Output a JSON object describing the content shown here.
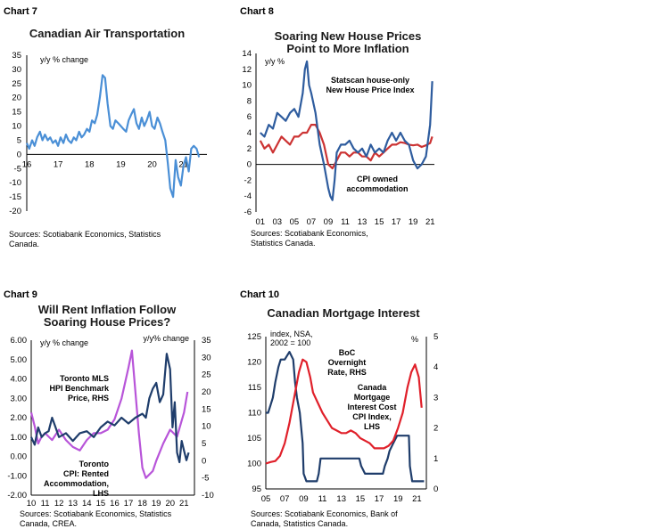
{
  "chart_data": [
    {
      "id": "chart7",
      "type": "line",
      "label": "Chart 7",
      "title": "Canadian Air Transportation",
      "ylabel": "y/y % change",
      "ylim": [
        -20,
        35
      ],
      "yticks": [
        "35",
        "30",
        "25",
        "20",
        "15",
        "10",
        "5",
        "0",
        "-5",
        "-10",
        "-15",
        "-20"
      ],
      "xlim": [
        2016,
        2021.75
      ],
      "xticks": [
        "16",
        "17",
        "18",
        "19",
        "20",
        "21"
      ],
      "source": "Sources: Scotiabank Economics, Statistics Canada.",
      "series": [
        {
          "color": "#4a8fd6",
          "x": [
            2016.0,
            2016.08,
            2016.17,
            2016.25,
            2016.33,
            2016.42,
            2016.5,
            2016.58,
            2016.67,
            2016.75,
            2016.83,
            2016.92,
            2017.0,
            2017.08,
            2017.17,
            2017.25,
            2017.33,
            2017.42,
            2017.5,
            2017.58,
            2017.67,
            2017.75,
            2017.83,
            2017.92,
            2018.0,
            2018.08,
            2018.17,
            2018.25,
            2018.33,
            2018.42,
            2018.5,
            2018.58,
            2018.67,
            2018.75,
            2018.83,
            2018.92,
            2019.0,
            2019.08,
            2019.17,
            2019.25,
            2019.33,
            2019.42,
            2019.5,
            2019.58,
            2019.67,
            2019.75,
            2019.83,
            2019.92,
            2020.0,
            2020.08,
            2020.17,
            2020.25,
            2020.33,
            2020.42,
            2020.5,
            2020.58,
            2020.67,
            2020.75,
            2020.83,
            2020.92,
            2021.0,
            2021.08,
            2021.17,
            2021.25,
            2021.33,
            2021.42,
            2021.5
          ],
          "y": [
            4,
            2,
            5,
            3,
            6,
            8,
            5,
            7,
            5,
            6,
            4,
            5,
            3,
            6,
            4,
            7,
            5,
            4,
            6,
            5,
            8,
            6,
            7,
            9,
            8,
            12,
            11,
            14,
            20,
            28,
            27,
            18,
            10,
            9,
            12,
            11,
            10,
            9,
            8,
            12,
            14,
            16,
            11,
            9,
            13,
            10,
            12,
            15,
            10,
            9,
            13,
            11,
            8,
            5,
            -3,
            -12,
            -15,
            -2,
            -8,
            -11,
            -4,
            -1,
            -6,
            2,
            3,
            2,
            -1
          ]
        }
      ]
    },
    {
      "id": "chart8",
      "type": "line",
      "label": "Chart 8",
      "title": [
        "Soaring New House Prices",
        "Point to More Inflation"
      ],
      "ylabel": "y/y %",
      "ylim": [
        -6,
        14
      ],
      "yticks": [
        "14",
        "12",
        "10",
        "8",
        "6",
        "4",
        "2",
        "0",
        "-2",
        "-4",
        "-6"
      ],
      "xlim": [
        2000.5,
        2021.5
      ],
      "xticks": [
        "01",
        "03",
        "05",
        "07",
        "09",
        "11",
        "13",
        "15",
        "17",
        "19",
        "21"
      ],
      "source": [
        "Sources: Scotiabank Economics,",
        "Statistics Canada."
      ],
      "annotations": [
        {
          "lines": [
            "Statscan house-only",
            "New House Price Index"
          ],
          "color": "#1f4e8c"
        },
        {
          "lines": [
            "CPI owned",
            "accommodation"
          ],
          "color": "#3c9b5c"
        }
      ],
      "series": [
        {
          "name": "Statscan house-only New House Price Index",
          "color": "#2e5c9e",
          "x": [
            2001,
            2001.5,
            2002,
            2002.5,
            2003,
            2003.5,
            2004,
            2004.5,
            2005,
            2005.5,
            2006,
            2006.25,
            2006.5,
            2006.75,
            2007,
            2007.5,
            2008,
            2008.5,
            2009,
            2009.25,
            2009.5,
            2009.75,
            2010,
            2010.5,
            2011,
            2011.5,
            2012,
            2012.5,
            2013,
            2013.5,
            2014,
            2014.5,
            2015,
            2015.5,
            2016,
            2016.5,
            2017,
            2017.5,
            2018,
            2018.5,
            2019,
            2019.5,
            2020,
            2020.5,
            2021,
            2021.25
          ],
          "y": [
            4,
            3.5,
            5,
            4.5,
            6.5,
            6,
            5.5,
            6.5,
            7,
            6,
            9,
            12,
            13,
            10,
            9,
            6.5,
            2.5,
            0,
            -3,
            -4,
            -4.5,
            -2,
            1.5,
            2.5,
            2.5,
            3,
            2,
            1.5,
            2,
            1,
            2.5,
            1.5,
            2,
            1.5,
            3,
            4,
            3,
            4,
            3,
            2.5,
            0.5,
            -0.5,
            0,
            1,
            5,
            10.5
          ]
        },
        {
          "name": "CPI owned accommodation",
          "color": "#cc3333",
          "x": [
            2001,
            2001.5,
            2002,
            2002.5,
            2003,
            2003.5,
            2004,
            2004.5,
            2005,
            2005.5,
            2006,
            2006.5,
            2007,
            2007.5,
            2008,
            2008.5,
            2009,
            2009.5,
            2010,
            2010.5,
            2011,
            2011.5,
            2012,
            2012.5,
            2013,
            2013.5,
            2014,
            2014.5,
            2015,
            2015.5,
            2016,
            2016.5,
            2017,
            2017.5,
            2018,
            2018.5,
            2019,
            2019.5,
            2020,
            2020.5,
            2021,
            2021.25
          ],
          "y": [
            3,
            2,
            2.5,
            1.5,
            2.5,
            3.5,
            3,
            2.5,
            3.5,
            3.5,
            4,
            4,
            5,
            5,
            4,
            2.5,
            0,
            -0.5,
            0.5,
            1.5,
            1.5,
            1,
            1.5,
            1.5,
            1,
            1,
            0.5,
            1.5,
            1,
            1.5,
            2,
            2.5,
            2.5,
            2.8,
            2.7,
            2.5,
            2.4,
            2.5,
            2.2,
            2.4,
            2.7,
            3.5
          ]
        }
      ]
    },
    {
      "id": "chart9",
      "type": "line",
      "label": "Chart 9",
      "title": [
        "Will Rent Inflation Follow",
        "Soaring House Prices?"
      ],
      "ylabel_left": "y/y % change",
      "ylabel_right": "y/y% change",
      "ylim_left": [
        -2,
        6
      ],
      "ylim_right": [
        -10,
        35
      ],
      "yticks_left": [
        "6.00",
        "5.00",
        "4.00",
        "3.00",
        "2.00",
        "1.00",
        "0.00",
        "-1.00",
        "-2.00"
      ],
      "yticks_right": [
        "35",
        "30",
        "25",
        "20",
        "15",
        "10",
        "5",
        "0",
        "-5",
        "-10"
      ],
      "xlim": [
        2010,
        2021.75
      ],
      "xticks": [
        "10",
        "11",
        "12",
        "13",
        "14",
        "15",
        "16",
        "17",
        "18",
        "19",
        "20",
        "21"
      ],
      "source": [
        "Sources: Scotiabank Economics, Statistics",
        "Canada, CREA."
      ],
      "annotations": [
        {
          "lines": [
            "Toronto MLS",
            "HPI Benchmark",
            "Price, RHS"
          ],
          "color": "#b855d9"
        },
        {
          "lines": [
            "Toronto",
            "CPI: Rented",
            "Accommodation,",
            "LHS"
          ],
          "color": "#1f3d6b"
        }
      ],
      "series": [
        {
          "name": "Toronto CPI: Rented Accommodation, LHS",
          "color": "#1f3d6b",
          "axis": "left",
          "x": [
            2010,
            2010.25,
            2010.5,
            2010.75,
            2011,
            2011.25,
            2011.5,
            2011.75,
            2012,
            2012.5,
            2013,
            2013.5,
            2014,
            2014.5,
            2015,
            2015.5,
            2016,
            2016.5,
            2017,
            2017.5,
            2018,
            2018.25,
            2018.5,
            2018.75,
            2019,
            2019.25,
            2019.5,
            2019.75,
            2020,
            2020.17,
            2020.33,
            2020.5,
            2020.67,
            2020.83,
            2021,
            2021.17,
            2021.33
          ],
          "y": [
            1.0,
            0.6,
            1.5,
            1.0,
            1.2,
            1.3,
            2.0,
            1.5,
            1.0,
            1.2,
            0.8,
            1.2,
            1.3,
            1.0,
            1.5,
            1.8,
            1.6,
            2.0,
            1.7,
            2.0,
            2.2,
            2.0,
            3.0,
            3.5,
            3.8,
            2.8,
            3.2,
            5.3,
            4.5,
            1.5,
            2.8,
            0.2,
            -0.3,
            0.8,
            0.3,
            -0.2,
            0.2
          ]
        },
        {
          "name": "Toronto MLS HPI Benchmark Price, RHS",
          "color": "#b855d9",
          "axis": "right",
          "x": [
            2010,
            2010.25,
            2010.5,
            2010.75,
            2011,
            2011.5,
            2012,
            2012.5,
            2013,
            2013.5,
            2014,
            2014.5,
            2015,
            2015.5,
            2016,
            2016.5,
            2017,
            2017.25,
            2017.5,
            2017.75,
            2018,
            2018.25,
            2018.5,
            2018.75,
            2019,
            2019.5,
            2020,
            2020.5,
            2021,
            2021.25
          ],
          "y": [
            14,
            10,
            5,
            7,
            8,
            6,
            9,
            6,
            4,
            3,
            6,
            8,
            8,
            9,
            12,
            18,
            27,
            32,
            20,
            8,
            -2,
            -5,
            -4,
            -3,
            0,
            5,
            9,
            7,
            14,
            20
          ]
        }
      ]
    },
    {
      "id": "chart10",
      "type": "line",
      "label": "Chart 10",
      "title": "Canadian Mortgage Interest",
      "ylabel_left": [
        "index, NSA,",
        "2002 = 100"
      ],
      "ylabel_right": "%",
      "ylim_left": [
        95,
        125
      ],
      "ylim_right": [
        0,
        5
      ],
      "yticks_left": [
        "125",
        "120",
        "115",
        "110",
        "105",
        "100",
        "95"
      ],
      "yticks_right": [
        "5",
        "4",
        "3",
        "2",
        "1",
        "0"
      ],
      "xlim": [
        2005,
        2022
      ],
      "xticks": [
        "05",
        "07",
        "09",
        "11",
        "13",
        "15",
        "17",
        "19",
        "21"
      ],
      "source": [
        "Sources: Scotiabank Economics, Bank of",
        "Canada, Statistics Canada."
      ],
      "annotations": [
        {
          "lines": [
            "BoC",
            "Overnight",
            "Rate, RHS"
          ],
          "color": "#1f3d6b"
        },
        {
          "lines": [
            "Canada",
            "Mortgage",
            "Interest Cost",
            "CPI Index,",
            "LHS"
          ],
          "color": "#e0202a"
        }
      ],
      "series": [
        {
          "name": "BoC Overnight Rate, RHS",
          "color": "#1f3d6b",
          "axis": "right",
          "x": [
            2005,
            2005.25,
            2005.5,
            2005.75,
            2006,
            2006.33,
            2006.58,
            2007,
            2007.5,
            2007.9,
            2008.1,
            2008.3,
            2008.6,
            2008.9,
            2009.0,
            2009.3,
            2010.4,
            2010.6,
            2010.8,
            2014.9,
            2015.1,
            2015.5,
            2017.4,
            2017.6,
            2017.9,
            2018.1,
            2018.5,
            2018.9,
            2020.15,
            2020.25,
            2020.5,
            2021.75
          ],
          "y": [
            2.5,
            2.5,
            2.75,
            3.0,
            3.5,
            4.0,
            4.25,
            4.25,
            4.5,
            4.25,
            3.5,
            3.0,
            2.5,
            1.5,
            0.5,
            0.25,
            0.25,
            0.5,
            1.0,
            1.0,
            0.75,
            0.5,
            0.5,
            0.75,
            1.0,
            1.25,
            1.5,
            1.75,
            1.75,
            0.75,
            0.25,
            0.25
          ]
        },
        {
          "name": "Canada Mortgage Interest Cost CPI Index, LHS",
          "color": "#e0202a",
          "axis": "left",
          "x": [
            2005,
            2005.5,
            2006,
            2006.5,
            2007,
            2007.5,
            2008,
            2008.5,
            2008.9,
            2009.3,
            2009.7,
            2010,
            2010.5,
            2011,
            2011.5,
            2012,
            2012.5,
            2013,
            2013.5,
            2014,
            2014.5,
            2015,
            2015.5,
            2016,
            2016.5,
            2017,
            2017.5,
            2018,
            2018.5,
            2019,
            2019.5,
            2020,
            2020.4,
            2020.8,
            2021.2,
            2021.5
          ],
          "y": [
            100,
            100.3,
            100.5,
            101.5,
            104,
            108,
            113,
            118,
            120.5,
            120,
            117,
            114,
            112,
            110,
            108.5,
            107,
            106.5,
            106,
            106,
            106.5,
            106,
            105,
            104.5,
            104,
            103,
            103,
            103,
            103.5,
            104.5,
            107,
            110,
            115,
            118,
            119.5,
            117,
            111
          ]
        }
      ]
    }
  ]
}
